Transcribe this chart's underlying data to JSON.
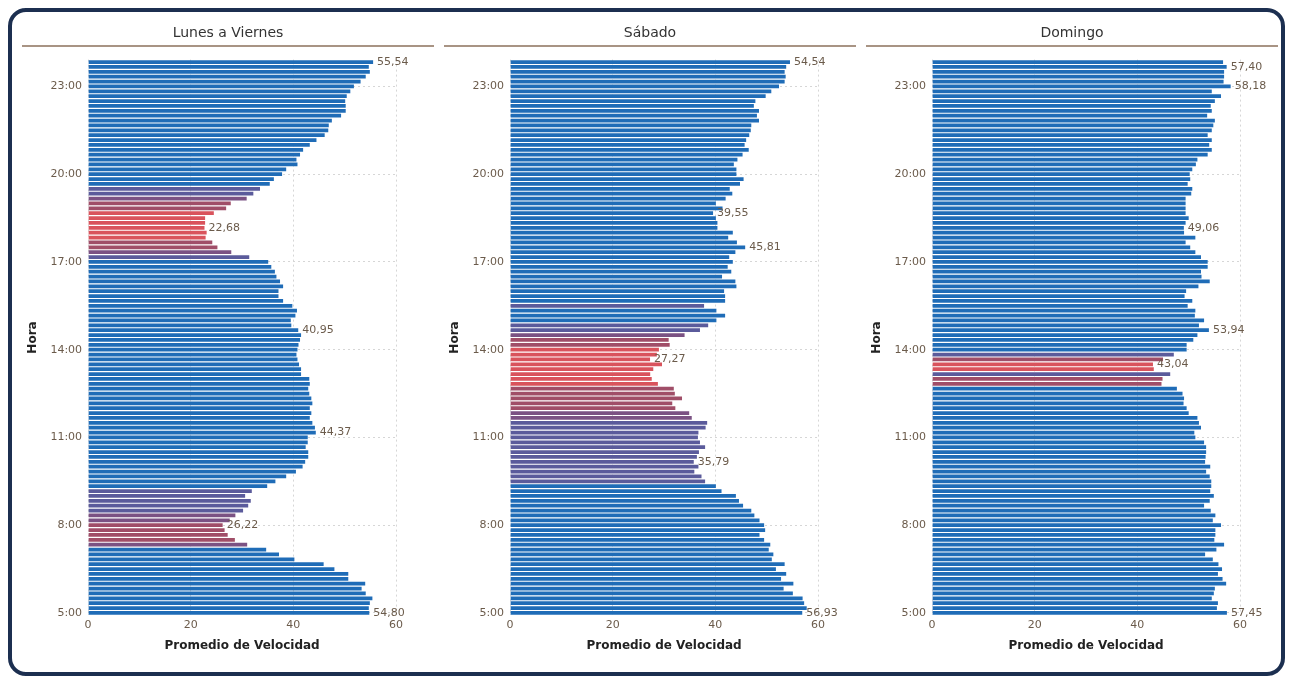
{
  "chart_data": [
    {
      "type": "bar",
      "orientation": "horizontal",
      "title": "Lunes a Viernes",
      "xlabel": "Promedio de Velocidad",
      "ylabel": "Hora",
      "xlim": [
        0,
        60
      ],
      "xticks": [
        0,
        20,
        40,
        60
      ],
      "grid": true,
      "categories": [
        null,
        null,
        null,
        null,
        null,
        "23:00",
        null,
        null,
        null,
        null,
        null,
        null,
        null,
        null,
        null,
        null,
        null,
        null,
        null,
        null,
        null,
        null,
        null,
        "20:00",
        null,
        null,
        null,
        null,
        null,
        null,
        null,
        null,
        null,
        null,
        null,
        null,
        null,
        null,
        null,
        null,
        null,
        "17:00",
        null,
        null,
        null,
        null,
        null,
        null,
        null,
        null,
        null,
        null,
        null,
        null,
        null,
        null,
        null,
        null,
        null,
        "14:00",
        null,
        null,
        null,
        null,
        null,
        null,
        null,
        null,
        null,
        null,
        null,
        null,
        null,
        null,
        null,
        null,
        null,
        "11:00",
        null,
        null,
        null,
        null,
        null,
        null,
        null,
        null,
        null,
        null,
        null,
        null,
        null,
        null,
        null,
        null,
        null,
        "8:00",
        null,
        null,
        null,
        null,
        null,
        null,
        null,
        null,
        null,
        null,
        null,
        null,
        null,
        null,
        null,
        null,
        null,
        "5:00"
      ],
      "values": [
        55.54,
        54.7,
        54.9,
        54.1,
        53.1,
        51.8,
        51.1,
        50.4,
        50.1,
        50.2,
        50.2,
        49.3,
        47.5,
        46.9,
        46.8,
        46.1,
        44.5,
        43.2,
        41.9,
        41.3,
        40.6,
        40.8,
        38.6,
        37.8,
        36.2,
        35.4,
        33.5,
        32.2,
        30.9,
        27.8,
        26.9,
        24.5,
        22.8,
        22.8,
        22.68,
        23.1,
        22.9,
        24.2,
        25.2,
        27.9,
        31.4,
        35.1,
        35.7,
        36.4,
        36.7,
        37.4,
        38.0,
        37.1,
        37.1,
        38.0,
        39.8,
        40.7,
        40.4,
        39.5,
        39.6,
        40.95,
        41.5,
        41.3,
        41.0,
        40.8,
        40.6,
        40.8,
        41.1,
        41.5,
        41.5,
        43.1,
        43.2,
        42.9,
        43.1,
        43.5,
        43.7,
        43.2,
        43.5,
        43.2,
        43.7,
        44.2,
        44.37,
        42.8,
        42.8,
        42.4,
        42.9,
        42.9,
        42.3,
        41.8,
        40.5,
        38.6,
        36.5,
        34.9,
        31.9,
        30.6,
        31.7,
        31.2,
        30.2,
        28.7,
        27.6,
        26.22,
        26.6,
        27.2,
        28.6,
        31.0,
        34.7,
        37.2,
        40.2,
        45.9,
        48.0,
        50.7,
        50.7,
        54.0,
        53.3,
        54.1,
        55.4,
        54.9,
        54.7,
        54.8
      ],
      "colors": [
        "#1f6cb7",
        "#1f6cb7",
        "#1f6cb7",
        "#1f6cb7",
        "#1f6cb7",
        "#1f6cb7",
        "#1f6cb7",
        "#1f6cb7",
        "#1f6cb7",
        "#1f6cb7",
        "#1f6cb7",
        "#1f6cb7",
        "#1f6cb7",
        "#1f6cb7",
        "#1f6cb7",
        "#1f6cb7",
        "#1f6cb7",
        "#1f6cb7",
        "#1f6cb7",
        "#1f6cb7",
        "#1f6cb7",
        "#1f6cb7",
        "#1f6cb7",
        "#1f6cb7",
        "#1f6cb7",
        "#1f6cb7",
        "#5b5b9b",
        "#5b5b9b",
        "#7b5283",
        "#a04e68",
        "#a04e68",
        "#d9535c",
        "#d9535c",
        "#d9535c",
        "#d9535c",
        "#d9535c",
        "#d9535c",
        "#a04e68",
        "#a04e68",
        "#7b5283",
        "#5b5b9b",
        "#1f6cb7",
        "#1f6cb7",
        "#1f6cb7",
        "#1f6cb7",
        "#1f6cb7",
        "#1f6cb7",
        "#1f6cb7",
        "#1f6cb7",
        "#1f6cb7",
        "#1f6cb7",
        "#1f6cb7",
        "#1f6cb7",
        "#1f6cb7",
        "#1f6cb7",
        "#1f6cb7",
        "#1f6cb7",
        "#1f6cb7",
        "#1f6cb7",
        "#1f6cb7",
        "#1f6cb7",
        "#1f6cb7",
        "#1f6cb7",
        "#1f6cb7",
        "#1f6cb7",
        "#1f6cb7",
        "#1f6cb7",
        "#1f6cb7",
        "#1f6cb7",
        "#1f6cb7",
        "#1f6cb7",
        "#1f6cb7",
        "#1f6cb7",
        "#1f6cb7",
        "#1f6cb7",
        "#1f6cb7",
        "#1f6cb7",
        "#1f6cb7",
        "#1f6cb7",
        "#1f6cb7",
        "#1f6cb7",
        "#1f6cb7",
        "#1f6cb7",
        "#1f6cb7",
        "#1f6cb7",
        "#1f6cb7",
        "#1f6cb7",
        "#1f6cb7",
        "#5b5b9b",
        "#5b5b9b",
        "#5b5b9b",
        "#5b5b9b",
        "#5b5b9b",
        "#7b5283",
        "#7b5283",
        "#a04e68",
        "#a04e68",
        "#a04e68",
        "#a04e68",
        "#7b5283",
        "#1f6cb7",
        "#1f6cb7",
        "#1f6cb7",
        "#1f6cb7",
        "#1f6cb7",
        "#1f6cb7",
        "#1f6cb7",
        "#1f6cb7",
        "#1f6cb7",
        "#1f6cb7",
        "#1f6cb7",
        "#1f6cb7",
        "#1f6cb7",
        "#1f6cb7"
      ],
      "value_labels": [
        "55,54",
        null,
        null,
        null,
        null,
        null,
        null,
        null,
        null,
        null,
        null,
        null,
        null,
        null,
        null,
        null,
        null,
        null,
        null,
        null,
        null,
        null,
        null,
        null,
        null,
        null,
        null,
        null,
        null,
        null,
        null,
        null,
        null,
        null,
        "22,68",
        null,
        null,
        null,
        null,
        null,
        null,
        null,
        null,
        null,
        null,
        null,
        null,
        null,
        null,
        null,
        null,
        null,
        null,
        null,
        null,
        "40,95",
        null,
        null,
        null,
        null,
        null,
        null,
        null,
        null,
        null,
        null,
        null,
        null,
        null,
        null,
        null,
        null,
        null,
        null,
        null,
        null,
        "44,37",
        null,
        null,
        null,
        null,
        null,
        null,
        null,
        null,
        null,
        null,
        null,
        null,
        null,
        null,
        null,
        null,
        null,
        null,
        "26,22",
        null,
        null,
        null,
        null,
        null,
        null,
        null,
        null,
        null,
        null,
        null,
        null,
        null,
        null,
        null,
        null,
        null,
        "54,80"
      ]
    },
    {
      "type": "bar",
      "orientation": "horizontal",
      "title": "Sábado",
      "xlabel": "Promedio de Velocidad",
      "ylabel": "Hora",
      "xlim": [
        0,
        60
      ],
      "xticks": [
        0,
        20,
        40,
        60
      ],
      "grid": true,
      "categories": [
        null,
        null,
        null,
        null,
        null,
        "23:00",
        null,
        null,
        null,
        null,
        null,
        null,
        null,
        null,
        null,
        null,
        null,
        null,
        null,
        null,
        null,
        null,
        null,
        "20:00",
        null,
        null,
        null,
        null,
        null,
        null,
        null,
        null,
        null,
        null,
        null,
        null,
        null,
        null,
        null,
        null,
        null,
        "17:00",
        null,
        null,
        null,
        null,
        null,
        null,
        null,
        null,
        null,
        null,
        null,
        null,
        null,
        null,
        null,
        null,
        null,
        "14:00",
        null,
        null,
        null,
        null,
        null,
        null,
        null,
        null,
        null,
        null,
        null,
        null,
        null,
        null,
        null,
        null,
        null,
        "11:00",
        null,
        null,
        null,
        null,
        null,
        null,
        null,
        null,
        null,
        null,
        null,
        null,
        null,
        null,
        null,
        null,
        null,
        "8:00",
        null,
        null,
        null,
        null,
        null,
        null,
        null,
        null,
        null,
        null,
        null,
        null,
        null,
        null,
        null,
        null,
        null,
        "5:00"
      ],
      "values": [
        54.54,
        53.8,
        53.5,
        53.7,
        53.5,
        52.4,
        50.9,
        49.8,
        47.8,
        47.5,
        48.5,
        48.1,
        48.5,
        47.0,
        46.9,
        46.6,
        46.0,
        45.7,
        46.5,
        45.3,
        44.3,
        43.6,
        44.1,
        44.1,
        45.5,
        44.8,
        42.8,
        43.3,
        42.0,
        40.1,
        41.4,
        39.55,
        40.1,
        40.4,
        40.4,
        43.4,
        42.5,
        44.2,
        45.81,
        43.9,
        42.7,
        43.4,
        42.4,
        43.1,
        41.3,
        43.9,
        44.1,
        41.7,
        41.9,
        41.9,
        37.8,
        40.2,
        41.9,
        40.2,
        38.6,
        37.0,
        34.0,
        30.9,
        31.1,
        29.0,
        28.6,
        27.27,
        29.6,
        27.9,
        27.3,
        27.6,
        28.8,
        31.9,
        32.1,
        33.5,
        31.6,
        32.2,
        34.9,
        35.4,
        38.4,
        38.1,
        36.7,
        36.6,
        37.0,
        38.0,
        36.8,
        36.4,
        35.79,
        36.7,
        35.9,
        37.3,
        38.0,
        40.1,
        41.2,
        44.0,
        44.6,
        45.4,
        47.0,
        47.6,
        48.6,
        49.5,
        49.7,
        48.6,
        49.5,
        50.7,
        50.4,
        51.3,
        51.0,
        53.5,
        51.8,
        53.8,
        52.8,
        55.2,
        53.3,
        55.1,
        57.0,
        57.3,
        57.8,
        56.93
      ],
      "colors": [
        "#1f6cb7",
        "#1f6cb7",
        "#1f6cb7",
        "#1f6cb7",
        "#1f6cb7",
        "#1f6cb7",
        "#1f6cb7",
        "#1f6cb7",
        "#1f6cb7",
        "#1f6cb7",
        "#1f6cb7",
        "#1f6cb7",
        "#1f6cb7",
        "#1f6cb7",
        "#1f6cb7",
        "#1f6cb7",
        "#1f6cb7",
        "#1f6cb7",
        "#1f6cb7",
        "#1f6cb7",
        "#1f6cb7",
        "#1f6cb7",
        "#1f6cb7",
        "#1f6cb7",
        "#1f6cb7",
        "#1f6cb7",
        "#1f6cb7",
        "#1f6cb7",
        "#1f6cb7",
        "#1f6cb7",
        "#1f6cb7",
        "#1f6cb7",
        "#1f6cb7",
        "#1f6cb7",
        "#1f6cb7",
        "#1f6cb7",
        "#1f6cb7",
        "#1f6cb7",
        "#1f6cb7",
        "#1f6cb7",
        "#1f6cb7",
        "#1f6cb7",
        "#1f6cb7",
        "#1f6cb7",
        "#1f6cb7",
        "#1f6cb7",
        "#1f6cb7",
        "#1f6cb7",
        "#1f6cb7",
        "#1f6cb7",
        "#5b5b9b",
        "#1f6cb7",
        "#1f6cb7",
        "#1f6cb7",
        "#5b5b9b",
        "#5b5b9b",
        "#7b5283",
        "#a04e68",
        "#a04e68",
        "#d9535c",
        "#d9535c",
        "#d9535c",
        "#d9535c",
        "#d9535c",
        "#d9535c",
        "#d9535c",
        "#d9535c",
        "#a04e68",
        "#a04e68",
        "#a04e68",
        "#a04e68",
        "#a04e68",
        "#7b5283",
        "#7b5283",
        "#5b5b9b",
        "#5b5b9b",
        "#5b5b9b",
        "#5b5b9b",
        "#5b5b9b",
        "#5b5b9b",
        "#5b5b9b",
        "#5b5b9b",
        "#5b5b9b",
        "#5b5b9b",
        "#5b5b9b",
        "#5b5b9b",
        "#5b5b9b",
        "#1f6cb7",
        "#1f6cb7",
        "#1f6cb7",
        "#1f6cb7",
        "#1f6cb7",
        "#1f6cb7",
        "#1f6cb7",
        "#1f6cb7",
        "#1f6cb7",
        "#1f6cb7",
        "#1f6cb7",
        "#1f6cb7",
        "#1f6cb7",
        "#1f6cb7",
        "#1f6cb7",
        "#1f6cb7",
        "#1f6cb7",
        "#1f6cb7",
        "#1f6cb7",
        "#1f6cb7",
        "#1f6cb7",
        "#1f6cb7",
        "#1f6cb7",
        "#1f6cb7",
        "#1f6cb7",
        "#1f6cb7",
        "#1f6cb7"
      ],
      "value_labels": [
        "54,54",
        null,
        null,
        null,
        null,
        null,
        null,
        null,
        null,
        null,
        null,
        null,
        null,
        null,
        null,
        null,
        null,
        null,
        null,
        null,
        null,
        null,
        null,
        null,
        null,
        null,
        null,
        null,
        null,
        null,
        null,
        "39,55",
        null,
        null,
        null,
        null,
        null,
        null,
        "45,81",
        null,
        null,
        null,
        null,
        null,
        null,
        null,
        null,
        null,
        null,
        null,
        null,
        null,
        null,
        null,
        null,
        null,
        null,
        null,
        null,
        null,
        null,
        "27,27",
        null,
        null,
        null,
        null,
        null,
        null,
        null,
        null,
        null,
        null,
        null,
        null,
        null,
        null,
        null,
        null,
        null,
        null,
        null,
        null,
        "35,79",
        null,
        null,
        null,
        null,
        null,
        null,
        null,
        null,
        null,
        null,
        null,
        null,
        null,
        null,
        null,
        null,
        null,
        null,
        null,
        null,
        null,
        null,
        null,
        null,
        null,
        null,
        null,
        null,
        null,
        null,
        "56,93"
      ]
    },
    {
      "type": "bar",
      "orientation": "horizontal",
      "title": "Domingo",
      "xlabel": "Promedio de Velocidad",
      "ylabel": "Hora",
      "xlim": [
        0,
        60
      ],
      "xticks": [
        0,
        20,
        40,
        60
      ],
      "grid": true,
      "categories": [
        null,
        null,
        null,
        null,
        null,
        "23:00",
        null,
        null,
        null,
        null,
        null,
        null,
        null,
        null,
        null,
        null,
        null,
        null,
        null,
        null,
        null,
        null,
        null,
        "20:00",
        null,
        null,
        null,
        null,
        null,
        null,
        null,
        null,
        null,
        null,
        null,
        null,
        null,
        null,
        null,
        null,
        null,
        "17:00",
        null,
        null,
        null,
        null,
        null,
        null,
        null,
        null,
        null,
        null,
        null,
        null,
        null,
        null,
        null,
        null,
        null,
        "14:00",
        null,
        null,
        null,
        null,
        null,
        null,
        null,
        null,
        null,
        null,
        null,
        null,
        null,
        null,
        null,
        null,
        null,
        "11:00",
        null,
        null,
        null,
        null,
        null,
        null,
        null,
        null,
        null,
        null,
        null,
        null,
        null,
        null,
        null,
        null,
        null,
        "8:00",
        null,
        null,
        null,
        null,
        null,
        null,
        null,
        null,
        null,
        null,
        null,
        null,
        null,
        null,
        null,
        null,
        null,
        "5:00"
      ],
      "values": [
        56.7,
        57.4,
        56.9,
        56.9,
        56.8,
        58.18,
        54.5,
        56.3,
        55.1,
        54.3,
        54.5,
        53.6,
        55.1,
        54.8,
        54.5,
        53.7,
        54.5,
        54.0,
        54.5,
        53.7,
        51.7,
        51.4,
        50.7,
        50.2,
        50.3,
        49.8,
        50.7,
        50.5,
        49.4,
        49.4,
        49.4,
        49.4,
        50.0,
        49.4,
        49.06,
        49.1,
        51.3,
        49.4,
        50.3,
        51.3,
        52.4,
        53.7,
        53.7,
        52.4,
        52.5,
        54.1,
        51.9,
        49.5,
        49.2,
        50.7,
        49.8,
        51.3,
        51.2,
        53.0,
        52.0,
        53.94,
        51.7,
        50.9,
        49.6,
        49.6,
        47.1,
        45.0,
        43.04,
        43.2,
        46.4,
        44.9,
        44.7,
        47.7,
        48.8,
        49.1,
        49.0,
        49.6,
        50.0,
        51.7,
        52.0,
        52.4,
        51.1,
        51.3,
        53.0,
        53.4,
        53.4,
        53.3,
        53.2,
        54.2,
        53.4,
        54.1,
        54.4,
        54.4,
        54.2,
        54.9,
        54.1,
        53.0,
        54.3,
        55.2,
        54.7,
        56.3,
        55.2,
        55.2,
        55.0,
        56.9,
        55.4,
        53.2,
        54.7,
        55.8,
        56.5,
        55.7,
        56.6,
        57.3,
        55.1,
        54.9,
        54.5,
        55.7,
        55.5,
        57.45
      ],
      "colors": [
        "#1f6cb7",
        "#1f6cb7",
        "#1f6cb7",
        "#1f6cb7",
        "#1f6cb7",
        "#1f6cb7",
        "#1f6cb7",
        "#1f6cb7",
        "#1f6cb7",
        "#1f6cb7",
        "#1f6cb7",
        "#1f6cb7",
        "#1f6cb7",
        "#1f6cb7",
        "#1f6cb7",
        "#1f6cb7",
        "#1f6cb7",
        "#1f6cb7",
        "#1f6cb7",
        "#1f6cb7",
        "#1f6cb7",
        "#1f6cb7",
        "#1f6cb7",
        "#1f6cb7",
        "#1f6cb7",
        "#1f6cb7",
        "#1f6cb7",
        "#1f6cb7",
        "#1f6cb7",
        "#1f6cb7",
        "#1f6cb7",
        "#1f6cb7",
        "#1f6cb7",
        "#1f6cb7",
        "#1f6cb7",
        "#1f6cb7",
        "#1f6cb7",
        "#1f6cb7",
        "#1f6cb7",
        "#1f6cb7",
        "#1f6cb7",
        "#1f6cb7",
        "#1f6cb7",
        "#1f6cb7",
        "#1f6cb7",
        "#1f6cb7",
        "#1f6cb7",
        "#1f6cb7",
        "#1f6cb7",
        "#1f6cb7",
        "#1f6cb7",
        "#1f6cb7",
        "#1f6cb7",
        "#1f6cb7",
        "#1f6cb7",
        "#1f6cb7",
        "#1f6cb7",
        "#1f6cb7",
        "#1f6cb7",
        "#1f6cb7",
        "#5b5b9b",
        "#a04e68",
        "#d9535c",
        "#d9535c",
        "#5b5b9b",
        "#a04e68",
        "#a04e68",
        "#1f6cb7",
        "#1f6cb7",
        "#1f6cb7",
        "#1f6cb7",
        "#1f6cb7",
        "#1f6cb7",
        "#1f6cb7",
        "#1f6cb7",
        "#1f6cb7",
        "#1f6cb7",
        "#1f6cb7",
        "#1f6cb7",
        "#1f6cb7",
        "#1f6cb7",
        "#1f6cb7",
        "#1f6cb7",
        "#1f6cb7",
        "#1f6cb7",
        "#1f6cb7",
        "#1f6cb7",
        "#1f6cb7",
        "#1f6cb7",
        "#1f6cb7",
        "#1f6cb7",
        "#1f6cb7",
        "#1f6cb7",
        "#1f6cb7",
        "#1f6cb7",
        "#1f6cb7",
        "#1f6cb7",
        "#1f6cb7",
        "#1f6cb7",
        "#1f6cb7",
        "#1f6cb7",
        "#1f6cb7",
        "#1f6cb7",
        "#1f6cb7",
        "#1f6cb7",
        "#1f6cb7",
        "#1f6cb7",
        "#1f6cb7",
        "#1f6cb7",
        "#1f6cb7",
        "#1f6cb7",
        "#1f6cb7",
        "#1f6cb7",
        "#1f6cb7"
      ],
      "value_labels": [
        null,
        "57,40",
        null,
        null,
        null,
        "58,18",
        null,
        null,
        null,
        null,
        null,
        null,
        null,
        null,
        null,
        null,
        null,
        null,
        null,
        null,
        null,
        null,
        null,
        null,
        null,
        null,
        null,
        null,
        null,
        null,
        null,
        null,
        null,
        null,
        "49,06",
        null,
        null,
        null,
        null,
        null,
        null,
        null,
        null,
        null,
        null,
        null,
        null,
        null,
        null,
        null,
        null,
        null,
        null,
        null,
        null,
        "53,94",
        null,
        null,
        null,
        null,
        null,
        null,
        "43,04",
        null,
        null,
        null,
        null,
        null,
        null,
        null,
        null,
        null,
        null,
        null,
        null,
        null,
        null,
        null,
        null,
        null,
        null,
        null,
        null,
        null,
        null,
        null,
        null,
        null,
        null,
        null,
        null,
        null,
        null,
        null,
        null,
        null,
        null,
        null,
        null,
        null,
        null,
        null,
        null,
        null,
        null,
        null,
        null,
        null,
        null,
        null,
        null,
        null,
        null,
        "57,45"
      ]
    }
  ]
}
